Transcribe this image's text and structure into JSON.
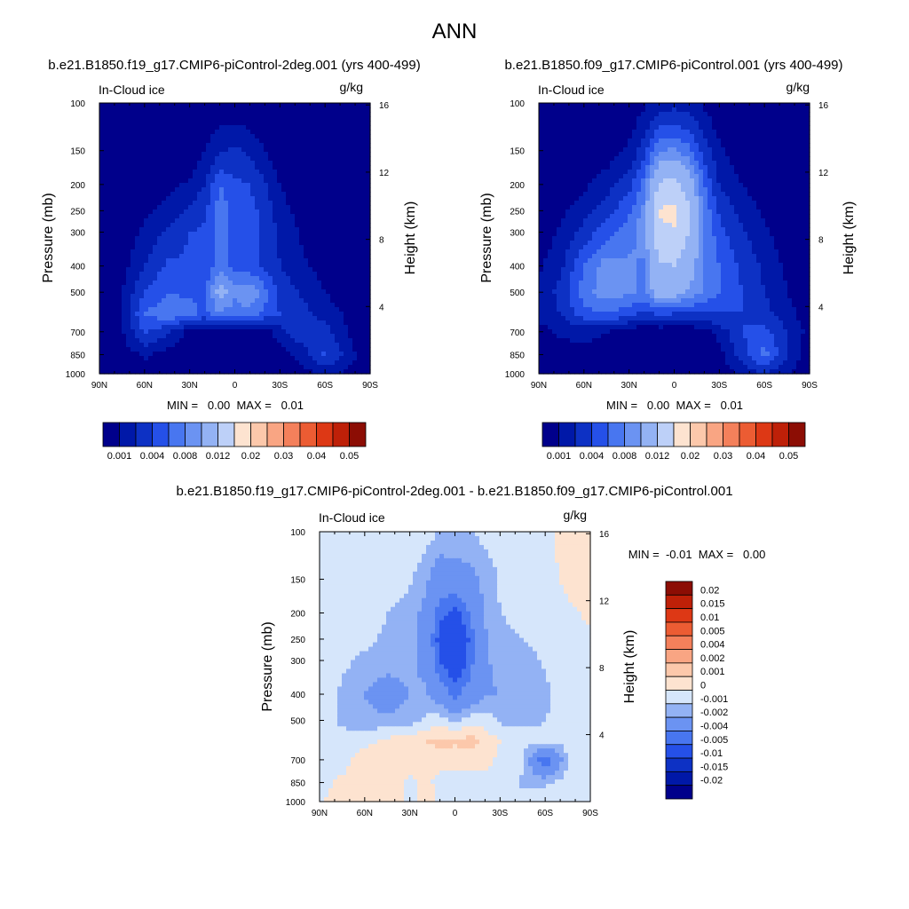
{
  "figure": {
    "title": "ANN",
    "bottom_title": "b.e21.B1850.f19_g17.CMIP6-piControl-2deg.001 - b.e21.B1850.f09_g17.CMIP6-piControl.001"
  },
  "colors": {
    "abs_levels": [
      "#00008b",
      "#0018a8",
      "#0d31c4",
      "#2550e8",
      "#4876f0",
      "#6b93f2",
      "#93b2f4",
      "#bdd0f8",
      "#fde3d0",
      "#fcc8ab",
      "#f9a583",
      "#f4805b",
      "#ec5c33",
      "#dd3815",
      "#be2008",
      "#8c0d04"
    ],
    "diff_levels": [
      "#00008b",
      "#0018a8",
      "#0d31c4",
      "#2550e8",
      "#4876f0",
      "#6b93f2",
      "#93b2f4",
      "#d6e6fb",
      "#fde3d0",
      "#fcc8ab",
      "#f9a583",
      "#f4805b",
      "#ec5c33",
      "#dd3815",
      "#be2008",
      "#8c0d04"
    ]
  },
  "chart_data": [
    {
      "type": "heatmap",
      "title": "b.e21.B1850.f19_g17.CMIP6-piControl-2deg.001 (yrs 400-499)",
      "variable": "In-Cloud ice",
      "units": "g/kg",
      "ylabel": "Pressure (mb)",
      "ylabel_right": "Height (km)",
      "x_ticks": [
        "90N",
        "60N",
        "30N",
        "0",
        "30S",
        "60S",
        "90S"
      ],
      "y_ticks": [
        "100",
        "150",
        "200",
        "250",
        "300",
        "400",
        "500",
        "700",
        "850",
        "1000"
      ],
      "y_ticks_right": [
        "16",
        "12",
        "8",
        "4"
      ],
      "xlim": [
        90,
        -90
      ],
      "ylim": [
        1000,
        100
      ],
      "stats": "MIN =   0.00  MAX =   0.01",
      "colorbar_labels": [
        "0.001",
        "0.004",
        "0.008",
        "0.012",
        "0.02",
        "0.03",
        "0.04",
        "0.05"
      ],
      "field": {
        "lat": [
          90,
          75,
          60,
          45,
          30,
          20,
          10,
          0,
          -10,
          -20,
          -30,
          -45,
          -60,
          -75,
          -90
        ],
        "p": [
          100,
          150,
          200,
          250,
          300,
          400,
          500,
          600,
          700,
          850,
          1000
        ],
        "values": [
          [
            0.0,
            0.0,
            0.0,
            0.0,
            0.0,
            0.0002,
            0.0003,
            0.0002,
            0.0002,
            0.0,
            0.0,
            0.0,
            0.0,
            0.0,
            0.0
          ],
          [
            0.0,
            0.0,
            0.0,
            0.0,
            0.0002,
            0.001,
            0.0018,
            0.0022,
            0.0018,
            0.001,
            0.0003,
            0.0,
            0.0,
            0.0,
            0.0
          ],
          [
            0.0,
            0.0,
            0.0002,
            0.0006,
            0.0012,
            0.002,
            0.004,
            0.0032,
            0.003,
            0.0022,
            0.001,
            0.0003,
            0.0,
            0.0,
            0.0
          ],
          [
            0.0,
            0.0003,
            0.0008,
            0.0014,
            0.0022,
            0.0028,
            0.0046,
            0.0036,
            0.0034,
            0.0026,
            0.0014,
            0.0006,
            0.0002,
            0.0,
            0.0
          ],
          [
            0.0,
            0.0004,
            0.0012,
            0.0022,
            0.003,
            0.0032,
            0.0046,
            0.0036,
            0.0034,
            0.0028,
            0.0018,
            0.0008,
            0.0003,
            0.0,
            0.0
          ],
          [
            0.0,
            0.0006,
            0.002,
            0.0032,
            0.0032,
            0.003,
            0.0046,
            0.0036,
            0.0034,
            0.0028,
            0.002,
            0.0012,
            0.0006,
            0.0002,
            0.0
          ],
          [
            0.0,
            0.001,
            0.003,
            0.004,
            0.0038,
            0.004,
            0.0066,
            0.0054,
            0.006,
            0.0044,
            0.0028,
            0.0018,
            0.001,
            0.0004,
            0.0
          ],
          [
            0.0,
            0.001,
            0.004,
            0.0048,
            0.0044,
            0.0036,
            0.005,
            0.0042,
            0.0046,
            0.0036,
            0.003,
            0.0024,
            0.0016,
            0.0008,
            0.0
          ],
          [
            0.0,
            0.0008,
            0.0032,
            0.0022,
            0.0006,
            0.0002,
            0.0002,
            0.0002,
            0.0004,
            0.0006,
            0.0016,
            0.0028,
            0.0024,
            0.001,
            0.0
          ],
          [
            0.0,
            0.0004,
            0.0012,
            0.0006,
            0.0,
            0.0,
            0.0,
            0.0,
            0.0,
            0.0,
            0.0004,
            0.0014,
            0.0032,
            0.0016,
            0.0
          ],
          [
            0.0,
            0.0002,
            0.0004,
            0.0002,
            0.0,
            0.0,
            0.0,
            0.0,
            0.0,
            0.0,
            0.0002,
            0.0006,
            0.0012,
            0.0008,
            0.0
          ]
        ]
      }
    },
    {
      "type": "heatmap",
      "title": "b.e21.B1850.f09_g17.CMIP6-piControl.001 (yrs 400-499)",
      "variable": "In-Cloud ice",
      "units": "g/kg",
      "ylabel": "Pressure (mb)",
      "ylabel_right": "Height (km)",
      "x_ticks": [
        "90N",
        "60N",
        "30N",
        "0",
        "30S",
        "60S",
        "90S"
      ],
      "y_ticks": [
        "100",
        "150",
        "200",
        "250",
        "300",
        "400",
        "500",
        "700",
        "850",
        "1000"
      ],
      "y_ticks_right": [
        "16",
        "12",
        "8",
        "4"
      ],
      "xlim": [
        90,
        -90
      ],
      "ylim": [
        1000,
        100
      ],
      "stats": "MIN =   0.00  MAX =   0.01",
      "colorbar_labels": [
        "0.001",
        "0.004",
        "0.008",
        "0.012",
        "0.02",
        "0.03",
        "0.04",
        "0.05"
      ],
      "field": {
        "lat": [
          90,
          75,
          60,
          45,
          30,
          20,
          10,
          0,
          -10,
          -20,
          -30,
          -45,
          -60,
          -75,
          -90
        ],
        "p": [
          100,
          150,
          200,
          250,
          300,
          400,
          500,
          600,
          700,
          850,
          1000
        ],
        "values": [
          [
            0.0,
            0.0,
            0.0,
            0.0,
            0.0002,
            0.0008,
            0.0014,
            0.0016,
            0.0014,
            0.0008,
            0.0002,
            0.0,
            0.0,
            0.0,
            0.0
          ],
          [
            0.0,
            0.0,
            0.0,
            0.0004,
            0.0012,
            0.0026,
            0.005,
            0.0052,
            0.0044,
            0.0026,
            0.0012,
            0.0004,
            0.0,
            0.0,
            0.0
          ],
          [
            0.0,
            0.0002,
            0.0008,
            0.0016,
            0.0026,
            0.0044,
            0.0084,
            0.0086,
            0.007,
            0.004,
            0.002,
            0.001,
            0.0004,
            0.0,
            0.0
          ],
          [
            0.0002,
            0.0008,
            0.0016,
            0.0026,
            0.0038,
            0.0054,
            0.0102,
            0.0104,
            0.0082,
            0.0048,
            0.0028,
            0.0016,
            0.0008,
            0.0002,
            0.0
          ],
          [
            0.0004,
            0.0012,
            0.0024,
            0.0036,
            0.0046,
            0.0056,
            0.0096,
            0.0098,
            0.008,
            0.005,
            0.0034,
            0.0022,
            0.0012,
            0.0004,
            0.0
          ],
          [
            0.0008,
            0.0018,
            0.004,
            0.0056,
            0.0052,
            0.0048,
            0.0076,
            0.008,
            0.0066,
            0.005,
            0.004,
            0.0028,
            0.0018,
            0.0008,
            0.0002
          ],
          [
            0.0012,
            0.0024,
            0.0046,
            0.0056,
            0.0052,
            0.0048,
            0.007,
            0.0066,
            0.0058,
            0.0048,
            0.004,
            0.003,
            0.002,
            0.001,
            0.0004
          ],
          [
            0.0014,
            0.002,
            0.0036,
            0.004,
            0.0034,
            0.0026,
            0.0032,
            0.003,
            0.003,
            0.0028,
            0.003,
            0.003,
            0.0024,
            0.0014,
            0.0004
          ],
          [
            0.0006,
            0.0012,
            0.0014,
            0.001,
            0.0004,
            0.0002,
            0.0002,
            0.0002,
            0.0002,
            0.0004,
            0.0014,
            0.003,
            0.0034,
            0.002,
            0.0006
          ],
          [
            0.0002,
            0.0004,
            0.0006,
            0.0004,
            0.0,
            0.0,
            0.0,
            0.0,
            0.0,
            0.0,
            0.0006,
            0.0026,
            0.0044,
            0.002,
            0.0004
          ],
          [
            0.0,
            0.0002,
            0.0002,
            0.0002,
            0.0,
            0.0,
            0.0,
            0.0,
            0.0,
            0.0,
            0.0002,
            0.0012,
            0.002,
            0.001,
            0.0002
          ]
        ]
      }
    },
    {
      "type": "heatmap",
      "title": "b.e21.B1850.f19_g17.CMIP6-piControl-2deg.001 - b.e21.B1850.f09_g17.CMIP6-piControl.001",
      "variable": "In-Cloud ice",
      "units": "g/kg",
      "ylabel": "Pressure (mb)",
      "ylabel_right": "Height (km)",
      "x_ticks": [
        "90N",
        "60N",
        "30N",
        "0",
        "30S",
        "60S",
        "90S"
      ],
      "y_ticks": [
        "100",
        "150",
        "200",
        "250",
        "300",
        "400",
        "500",
        "700",
        "850",
        "1000"
      ],
      "y_ticks_right": [
        "16",
        "12",
        "8",
        "4"
      ],
      "xlim": [
        90,
        -90
      ],
      "ylim": [
        1000,
        100
      ],
      "stats": "MIN =  -0.01  MAX =   0.00",
      "colorbar_labels": [
        "0.02",
        "0.015",
        "0.01",
        "0.005",
        "0.004",
        "0.002",
        "0.001",
        "0",
        "-0.001",
        "-0.002",
        "-0.004",
        "-0.005",
        "-0.01",
        "-0.015",
        "-0.02"
      ],
      "field": {
        "lat": [
          90,
          75,
          60,
          45,
          30,
          20,
          10,
          0,
          -10,
          -20,
          -30,
          -45,
          -60,
          -75,
          -90
        ],
        "p": [
          100,
          150,
          200,
          250,
          300,
          400,
          500,
          600,
          700,
          850,
          1000
        ],
        "values": [
          [
            -0.0003,
            -0.0003,
            -0.0003,
            -0.0004,
            -0.0005,
            -0.0006,
            -0.001,
            -0.001,
            -0.001,
            -0.0007,
            -0.0005,
            -0.0004,
            -0.0003,
            0.0004,
            0.0005
          ],
          [
            -0.0003,
            -0.0003,
            -0.0004,
            -0.0005,
            -0.0009,
            -0.0016,
            -0.0032,
            -0.003,
            -0.0026,
            -0.0016,
            -0.0009,
            -0.0005,
            -0.0003,
            0.0002,
            0.0005
          ],
          [
            -0.0003,
            -0.0004,
            -0.0005,
            -0.001,
            -0.0014,
            -0.0024,
            -0.0046,
            -0.0054,
            -0.004,
            -0.0018,
            -0.001,
            -0.0006,
            -0.0004,
            -0.0002,
            0.0002
          ],
          [
            -0.0003,
            -0.0005,
            -0.0008,
            -0.0012,
            -0.0016,
            -0.0026,
            -0.0056,
            -0.0068,
            -0.0048,
            -0.0022,
            -0.0014,
            -0.001,
            -0.0006,
            -0.0004,
            -0.0003
          ],
          [
            -0.0003,
            -0.0008,
            -0.0012,
            -0.0014,
            -0.0016,
            -0.0024,
            -0.005,
            -0.0062,
            -0.0046,
            -0.0022,
            -0.0016,
            -0.0014,
            -0.0009,
            -0.0005,
            -0.0003
          ],
          [
            -0.0003,
            -0.0012,
            -0.002,
            -0.003,
            -0.002,
            -0.0018,
            -0.003,
            -0.0044,
            -0.0032,
            -0.0022,
            -0.002,
            -0.0016,
            -0.0012,
            -0.0006,
            -0.0003
          ],
          [
            -0.0003,
            -0.0012,
            -0.0016,
            -0.0016,
            -0.0014,
            -0.0008,
            -0.0004,
            -0.0012,
            -0.0004,
            -0.0004,
            -0.0012,
            -0.0012,
            -0.001,
            -0.0006,
            -0.0003
          ],
          [
            -0.0003,
            -0.0006,
            -0.0004,
            0.0004,
            0.0006,
            0.001,
            0.0014,
            0.0012,
            0.0016,
            0.0008,
            0.0,
            -0.0006,
            -0.0008,
            -0.0006,
            -0.0003
          ],
          [
            -0.0003,
            -0.0004,
            0.0008,
            0.001,
            0.0004,
            0.0002,
            0.0002,
            0.0002,
            0.0002,
            0.0002,
            -0.0002,
            -0.0008,
            -0.0052,
            -0.001,
            -0.0003
          ],
          [
            -0.0003,
            0.0002,
            0.0006,
            0.0004,
            -0.0002,
            0.0002,
            -0.0002,
            -0.0002,
            -0.0002,
            -0.0002,
            -0.0002,
            -0.0012,
            -0.0012,
            -0.0004,
            -0.0003
          ],
          [
            -0.0003,
            0.0008,
            0.001,
            0.0004,
            -0.0002,
            0.0004,
            -0.0002,
            -0.0002,
            -0.0002,
            -0.0002,
            -0.0002,
            -0.0006,
            -0.0002,
            -0.0003,
            -0.0003
          ]
        ]
      }
    }
  ]
}
